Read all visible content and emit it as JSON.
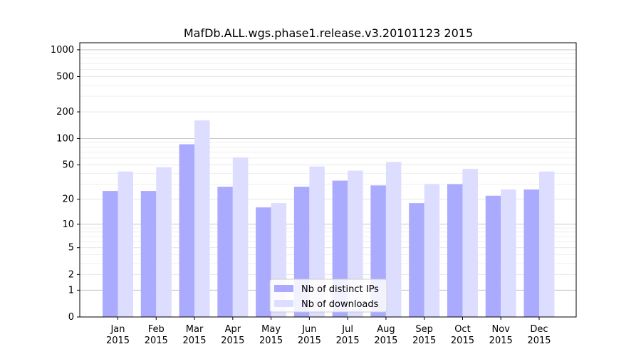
{
  "chart_data": {
    "type": "bar",
    "title": "MafDb.ALL.wgs.phase1.release.v3.20101123 2015",
    "xlabel": "",
    "ylabel": "",
    "yscale": "log1p",
    "ylim": [
      0,
      1200
    ],
    "y_ticks": [
      0,
      1,
      2,
      5,
      10,
      20,
      50,
      100,
      200,
      500,
      1000
    ],
    "y_tick_labels": [
      "0",
      "1",
      "2",
      "5",
      "10",
      "20",
      "50",
      "100",
      "200",
      "500",
      "1000"
    ],
    "grid": true,
    "legend_position": "lower center",
    "categories": [
      "Jan\n2015",
      "Feb\n2015",
      "Mar\n2015",
      "Apr\n2015",
      "May\n2015",
      "Jun\n2015",
      "Jul\n2015",
      "Aug\n2015",
      "Sep\n2015",
      "Oct\n2015",
      "Nov\n2015",
      "Dec\n2015"
    ],
    "series": [
      {
        "name": "Nb of distinct IPs",
        "color": "#aaaaff",
        "values": [
          25,
          25,
          86,
          28,
          16,
          28,
          33,
          29,
          18,
          30,
          22,
          26
        ]
      },
      {
        "name": "Nb of downloads",
        "color": "#ddddff",
        "values": [
          42,
          47,
          160,
          61,
          18,
          48,
          43,
          54,
          30,
          45,
          26,
          42
        ]
      }
    ]
  }
}
